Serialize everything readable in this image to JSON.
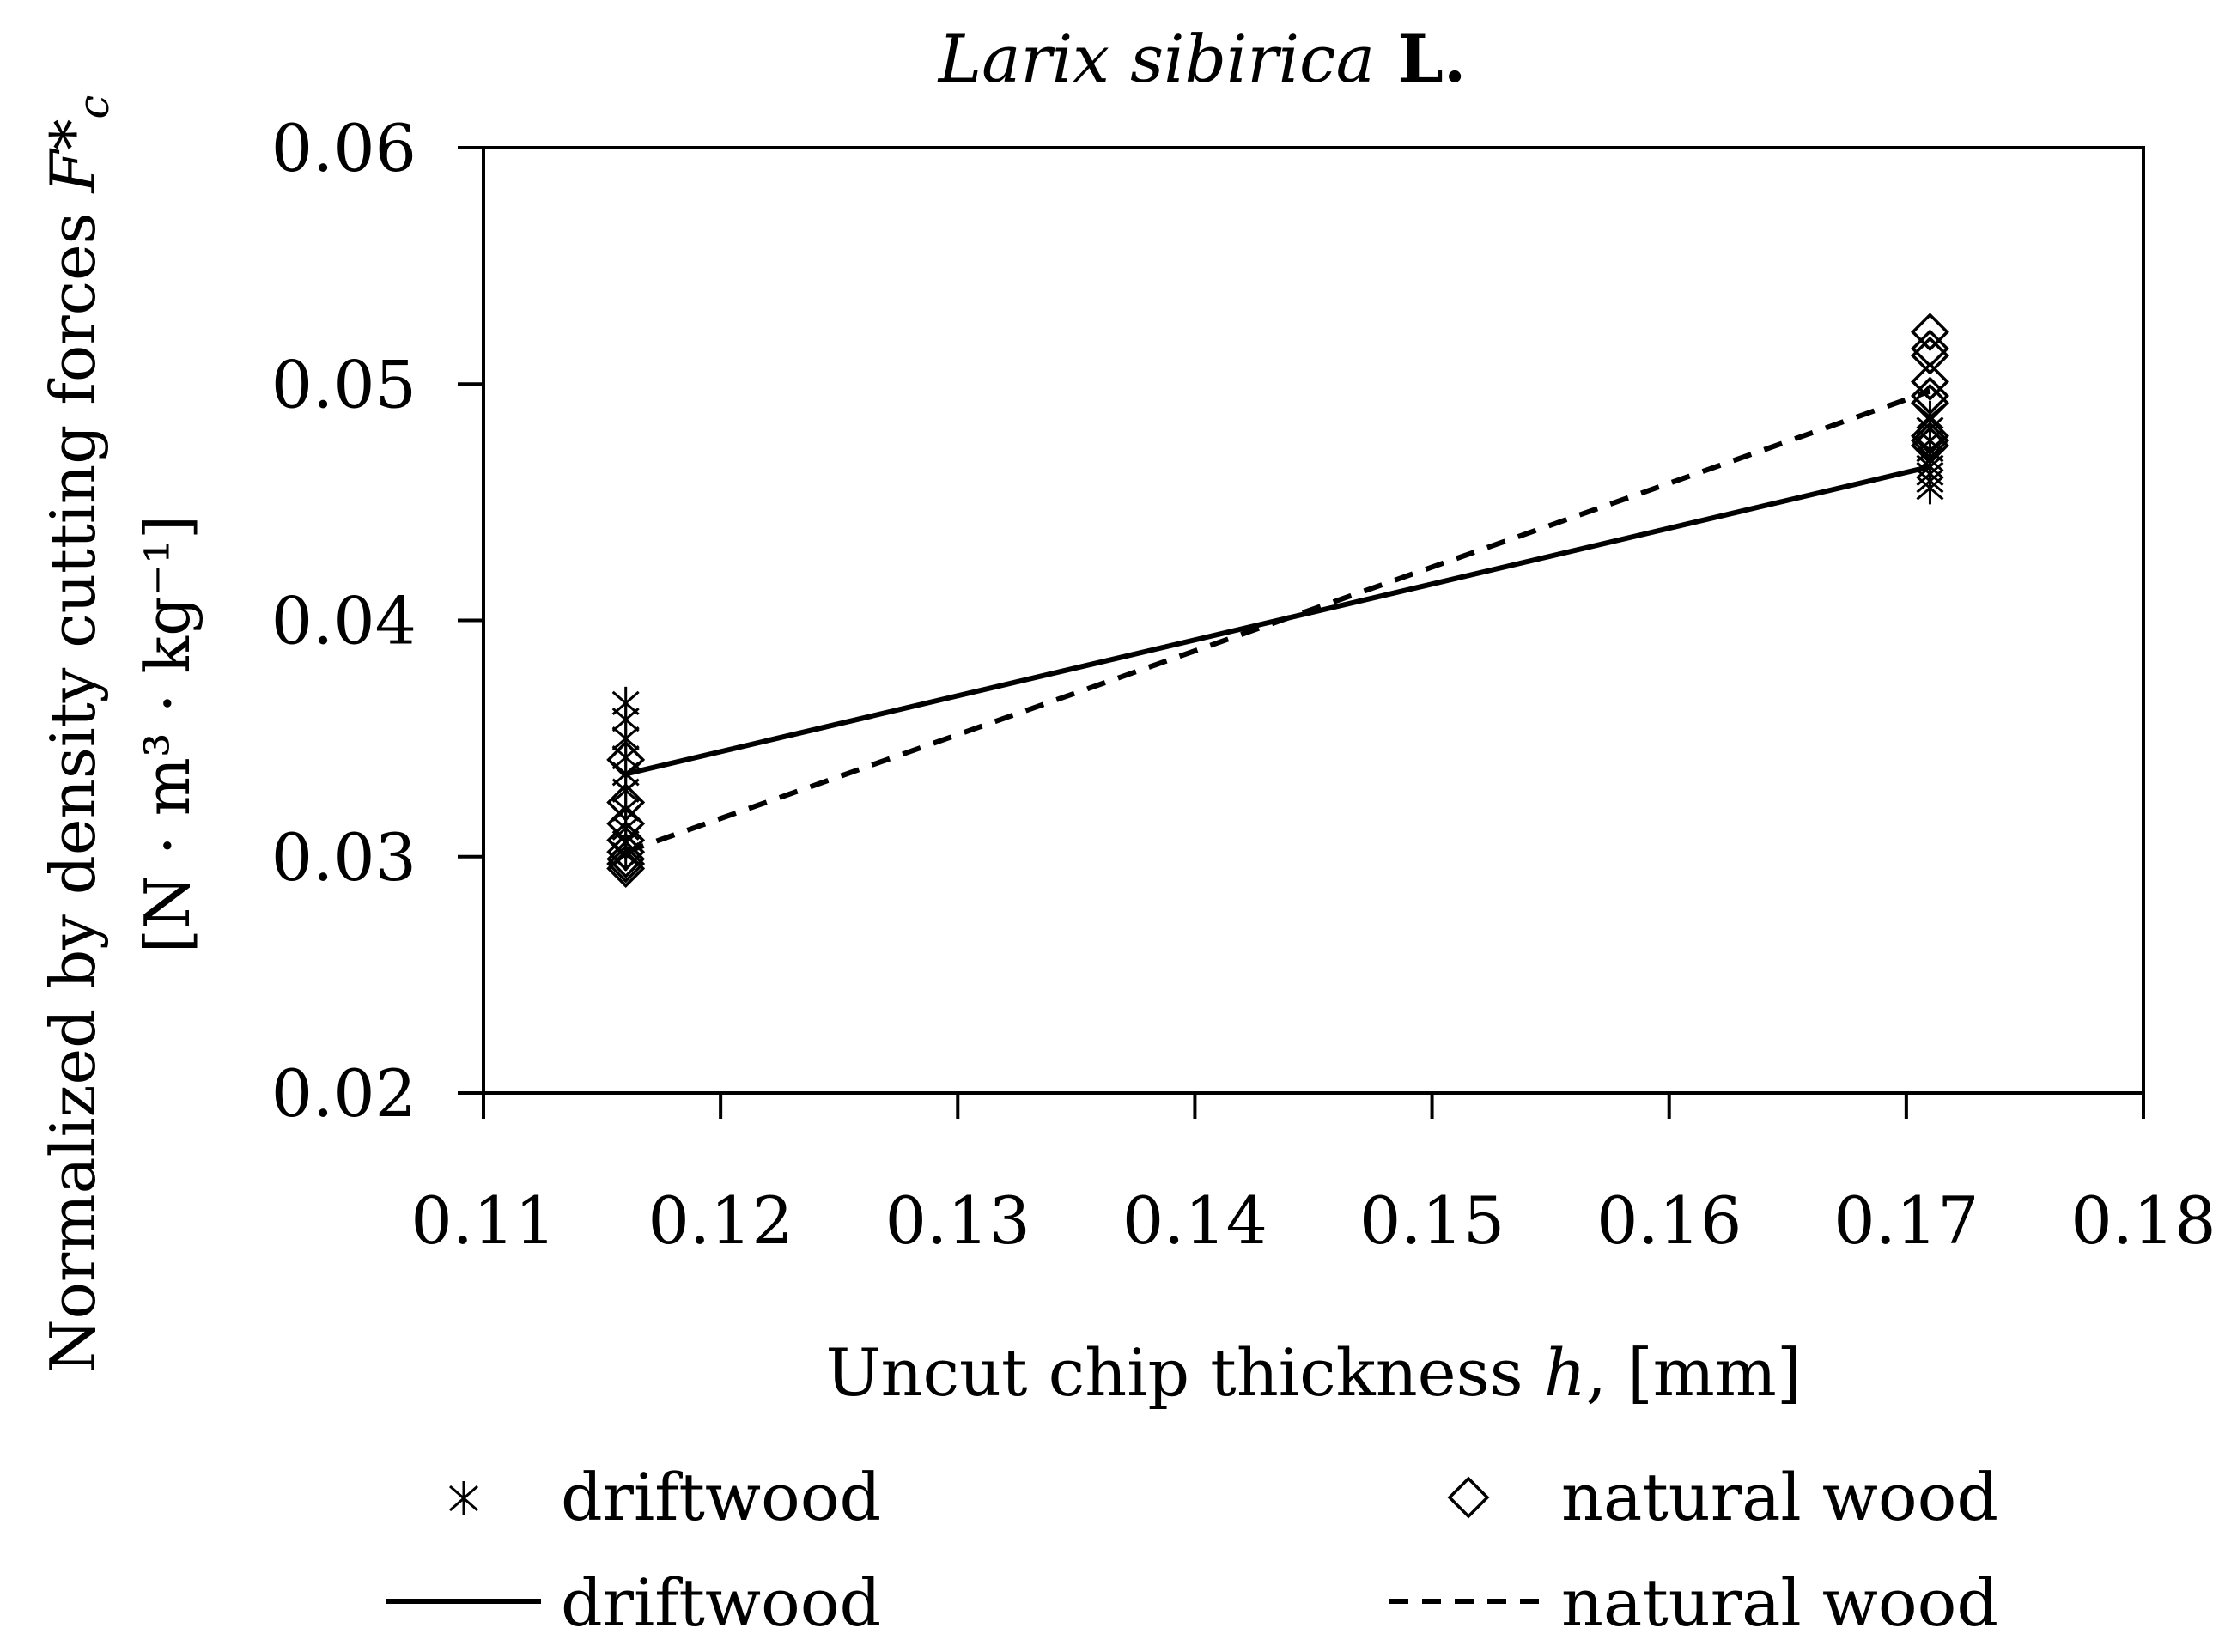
{
  "chart_data": {
    "type": "scatter",
    "title": {
      "italic": "Larix sibirica",
      "plain": " L."
    },
    "xlabel": {
      "main": "Uncut chip thickness ",
      "var": "h",
      "rest": ", [mm]"
    },
    "ylabel": {
      "line1_main": "Normalized by density cutting forces ",
      "line1_var": "F*",
      "line1_sub": "c",
      "line2": "[N · m³ · kg⁻¹]"
    },
    "xlim": [
      0.11,
      0.18
    ],
    "ylim": [
      0.02,
      0.06
    ],
    "x_ticks": [
      0.11,
      0.12,
      0.13,
      0.14,
      0.15,
      0.16,
      0.17,
      0.18
    ],
    "x_tick_labels": [
      "0.11",
      "0.12",
      "0.13",
      "0.14",
      "0.15",
      "0.16",
      "0.17",
      "0.18"
    ],
    "y_ticks": [
      0.02,
      0.03,
      0.04,
      0.05,
      0.06
    ],
    "y_tick_labels": [
      "0.02",
      "0.03",
      "0.04",
      "0.05",
      "0.06"
    ],
    "grid": false,
    "legend_position": "bottom",
    "series": [
      {
        "name": "driftwood",
        "marker": "asterisk",
        "points": [
          [
            0.116,
            0.0365
          ],
          [
            0.116,
            0.0358
          ],
          [
            0.116,
            0.035
          ],
          [
            0.116,
            0.0342
          ],
          [
            0.116,
            0.0335
          ],
          [
            0.116,
            0.0328
          ],
          [
            0.116,
            0.032
          ],
          [
            0.116,
            0.0312
          ],
          [
            0.116,
            0.0306
          ],
          [
            0.116,
            0.0301
          ],
          [
            0.171,
            0.0486
          ],
          [
            0.171,
            0.0481
          ],
          [
            0.171,
            0.0476
          ],
          [
            0.171,
            0.0472
          ],
          [
            0.171,
            0.0468
          ],
          [
            0.171,
            0.0465
          ],
          [
            0.171,
            0.0462
          ],
          [
            0.171,
            0.0459
          ],
          [
            0.171,
            0.0456
          ]
        ]
      },
      {
        "name": "natural wood",
        "marker": "diamond",
        "points": [
          [
            0.116,
            0.0341
          ],
          [
            0.116,
            0.0323
          ],
          [
            0.116,
            0.0314
          ],
          [
            0.116,
            0.0307
          ],
          [
            0.116,
            0.0302
          ],
          [
            0.116,
            0.0299
          ],
          [
            0.116,
            0.0297
          ],
          [
            0.116,
            0.0295
          ],
          [
            0.171,
            0.0522
          ],
          [
            0.171,
            0.0515
          ],
          [
            0.171,
            0.0512
          ],
          [
            0.171,
            0.0501
          ],
          [
            0.171,
            0.0495
          ],
          [
            0.171,
            0.0492
          ],
          [
            0.171,
            0.0478
          ],
          [
            0.171,
            0.0476
          ],
          [
            0.171,
            0.0474
          ]
        ]
      }
    ],
    "trendlines": [
      {
        "name": "driftwood",
        "style": "solid",
        "from": [
          0.116,
          0.0335
        ],
        "to": [
          0.171,
          0.0465
        ]
      },
      {
        "name": "natural wood",
        "style": "dashed",
        "from": [
          0.116,
          0.0302
        ],
        "to": [
          0.171,
          0.0497
        ]
      }
    ],
    "legend": [
      {
        "label": "driftwood",
        "kind": "asterisk"
      },
      {
        "label": "natural wood",
        "kind": "diamond"
      },
      {
        "label": "driftwood",
        "kind": "solid"
      },
      {
        "label": "natural wood",
        "kind": "dashed"
      }
    ]
  }
}
